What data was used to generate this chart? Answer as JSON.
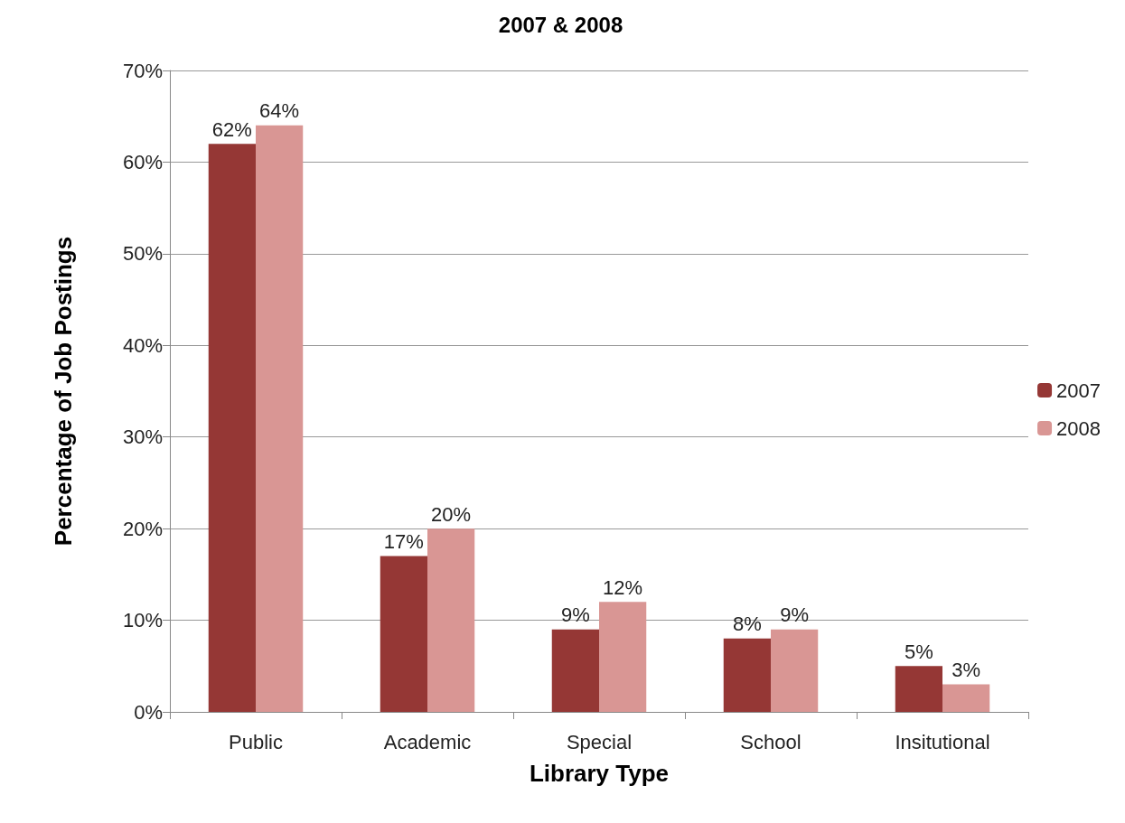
{
  "chart_data": {
    "type": "bar",
    "title": "2007 & 2008",
    "xlabel": "Library Type",
    "ylabel": "Percentage of Job Postings",
    "categories": [
      "Public",
      "Academic",
      "Special",
      "School",
      "Insitutional"
    ],
    "series": [
      {
        "name": "2007",
        "color": "#953735",
        "values": [
          62,
          17,
          9,
          8,
          5
        ],
        "value_labels": [
          "62%",
          "17%",
          "9%",
          "8%",
          "5%"
        ]
      },
      {
        "name": "2008",
        "color": "#d99694",
        "values": [
          64,
          20,
          12,
          9,
          3
        ],
        "value_labels": [
          "64%",
          "20%",
          "12%",
          "9%",
          "3%"
        ]
      }
    ],
    "ylim": [
      0,
      70
    ],
    "yticks": [
      {
        "value": 0,
        "label": "0%"
      },
      {
        "value": 10,
        "label": "10%"
      },
      {
        "value": 20,
        "label": "20%"
      },
      {
        "value": 30,
        "label": "30%"
      },
      {
        "value": 40,
        "label": "40%"
      },
      {
        "value": 50,
        "label": "50%"
      },
      {
        "value": 60,
        "label": "60%"
      },
      {
        "value": 70,
        "label": "70%"
      }
    ],
    "grid": "y",
    "legend": "right"
  }
}
